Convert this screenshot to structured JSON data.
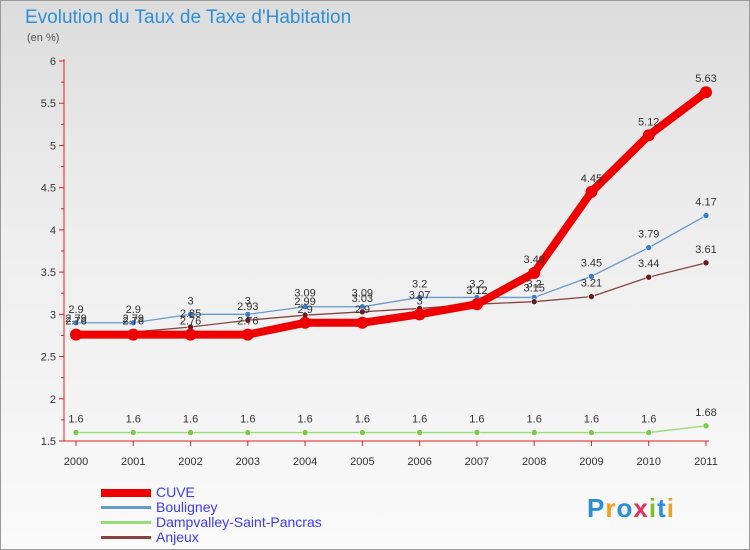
{
  "chart_data": {
    "type": "line",
    "title": "Evolution du Taux de Taxe d'Habitation",
    "unit_label": "(en %)",
    "x": [
      "2000",
      "2001",
      "2002",
      "2003",
      "2004",
      "2005",
      "2006",
      "2007",
      "2008",
      "2009",
      "2010",
      "2011"
    ],
    "ylim": [
      1.5,
      6
    ],
    "yticks": [
      "1.5",
      "2",
      "2.5",
      "3",
      "3.5",
      "4",
      "4.5",
      "5",
      "5.5",
      "6"
    ],
    "grid": false,
    "legend_position": "bottom-left",
    "series": [
      {
        "name": "CUVE",
        "color": "#ee0000",
        "emphasis": true,
        "values": [
          2.76,
          2.76,
          2.76,
          2.76,
          2.9,
          2.9,
          3,
          3.12,
          3.49,
          4.45,
          5.12,
          5.63
        ],
        "labels": [
          "2.76",
          "2.76",
          "2.76",
          "2.76",
          "2.9",
          "2.9",
          "3",
          "3.12",
          "3.49",
          "4.45",
          "5.12",
          "5.63"
        ]
      },
      {
        "name": "Bouligney",
        "color": "#6699cc",
        "point_color": "#3a7cc8",
        "values": [
          2.9,
          2.9,
          3,
          3,
          3.09,
          3.09,
          3.2,
          3.2,
          3.2,
          3.45,
          3.79,
          4.17
        ],
        "labels": [
          "2.9",
          "2.9",
          "3",
          "3",
          "3.09",
          "3.09",
          "3.2",
          "3.2",
          "3.2",
          "3.45",
          "3.79",
          "4.17"
        ]
      },
      {
        "name": "Dampvalley-Saint-Pancras",
        "color": "#99dd77",
        "point_color": "#77cc44",
        "values": [
          1.6,
          1.6,
          1.6,
          1.6,
          1.6,
          1.6,
          1.6,
          1.6,
          1.6,
          1.6,
          1.6,
          1.68
        ],
        "labels": [
          "1.6",
          "1.6",
          "1.6",
          "1.6",
          "1.6",
          "1.6",
          "1.6",
          "1.6",
          "1.6",
          "1.6",
          "1.6",
          "1.68"
        ]
      },
      {
        "name": "Anjeux",
        "color": "#884444",
        "point_color": "#661c1c",
        "values": [
          2.79,
          2.79,
          2.85,
          2.93,
          2.99,
          3.03,
          3.07,
          3.12,
          3.15,
          3.21,
          3.44,
          3.61
        ],
        "labels": [
          "2.79",
          "2.79",
          "2.85",
          "2.93",
          "2.99",
          "3.03",
          "3.07",
          "3.12",
          "3.15",
          "3.21",
          "3.44",
          "3.61"
        ]
      }
    ]
  },
  "logo": {
    "text": "Proxiti",
    "colors": [
      "#2a8fd8",
      "#f0a020",
      "#2a8fd8",
      "#e03060",
      "#80c020",
      "#2a8fd8",
      "#f0a020"
    ]
  }
}
